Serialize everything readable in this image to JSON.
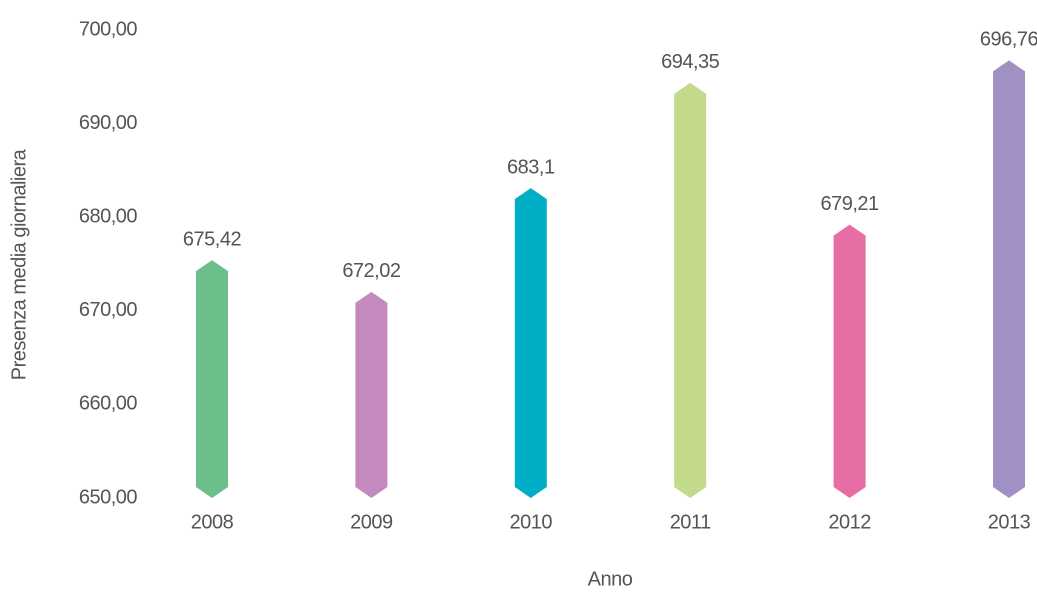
{
  "chart_data": {
    "type": "bar",
    "x_label": "Anno",
    "y_label": "Presenza media giornaliera",
    "categories": [
      "2008",
      "2009",
      "2010",
      "2011",
      "2012",
      "2013"
    ],
    "values": [
      675.42,
      672.02,
      683.1,
      694.35,
      679.21,
      696.76
    ],
    "value_labels": [
      "675,42",
      "672,02",
      "683,1",
      "694,35",
      "679,21",
      "696,76"
    ],
    "colors": [
      "#6bbf8b",
      "#c48abd",
      "#00aec6",
      "#c2da8a",
      "#e66ea5",
      "#a190c4"
    ],
    "ylim": [
      650,
      700
    ],
    "yticks": [
      {
        "value": 650,
        "label": "650,00"
      },
      {
        "value": 660,
        "label": "660,00"
      },
      {
        "value": 670,
        "label": "670,00"
      },
      {
        "value": 680,
        "label": "680,00"
      },
      {
        "value": 690,
        "label": "690,00"
      },
      {
        "value": 700,
        "label": "700,00"
      }
    ],
    "grid": false
  }
}
